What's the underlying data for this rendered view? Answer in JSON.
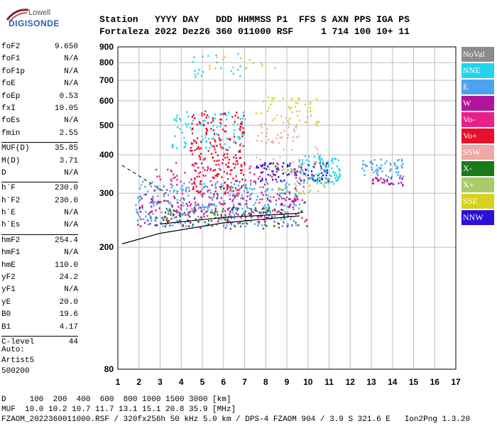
{
  "logo": {
    "top": "Lowell",
    "main": "DIGISONDE"
  },
  "header": {
    "line1": "Station   YYYY DAY   DDD HHMMSS P1  FFS S AXN PPS IGA PS",
    "line2": "Fortaleza 2022 Dez26 360 011000 RSF     1 714 100 10+ 11"
  },
  "params": {
    "group1": [
      {
        "name": "foF2",
        "value": "9.650"
      },
      {
        "name": "foF1",
        "value": "N/A"
      },
      {
        "name": "foF1p",
        "value": "N/A"
      },
      {
        "name": "foE",
        "value": "N/A"
      },
      {
        "name": "foEp",
        "value": "0.53"
      },
      {
        "name": "fxI",
        "value": "10.05"
      },
      {
        "name": "foEs",
        "value": "N/A"
      },
      {
        "name": "fmin",
        "value": "2.55"
      }
    ],
    "group2": [
      {
        "name": "MUF(D)",
        "value": "35.85"
      },
      {
        "name": "M(D)",
        "value": "3.71"
      },
      {
        "name": "D",
        "value": "N/A"
      }
    ],
    "group3": [
      {
        "name": "h`F",
        "value": "230.0"
      },
      {
        "name": "h`F2",
        "value": "230.0"
      },
      {
        "name": "h`E",
        "value": "N/A"
      },
      {
        "name": "h`Es",
        "value": "N/A"
      }
    ],
    "group4": [
      {
        "name": "hmF2",
        "value": "254.4"
      },
      {
        "name": "hmF1",
        "value": "N/A"
      },
      {
        "name": "hmE",
        "value": "110.0"
      },
      {
        "name": "yF2",
        "value": "24.2"
      },
      {
        "name": "yF1",
        "value": "N/A"
      },
      {
        "name": "yE",
        "value": "20.0"
      },
      {
        "name": "B0",
        "value": "19.6"
      },
      {
        "name": "B1",
        "value": "4.17"
      }
    ],
    "group5": [
      {
        "name": "C-level",
        "value": "44"
      }
    ]
  },
  "auto": {
    "line1": "Auto:",
    "line2": "Artist5",
    "line3": "500200"
  },
  "legend": [
    {
      "label": "NoVal",
      "color": "#8c8c8c"
    },
    {
      "label": "NNE",
      "color": "#22d3ee"
    },
    {
      "label": "E",
      "color": "#4aa3f0"
    },
    {
      "label": "W",
      "color": "#b0159c"
    },
    {
      "label": "Vo-",
      "color": "#e8208a"
    },
    {
      "label": "Vo+",
      "color": "#e8102a"
    },
    {
      "label": "SSW",
      "color": "#f0a8a8"
    },
    {
      "label": "X-",
      "color": "#1a7a1a"
    },
    {
      "label": "X+",
      "color": "#a8cc6a"
    },
    {
      "label": "SSE",
      "color": "#d8d020"
    },
    {
      "label": "NNW",
      "color": "#2a10d8"
    }
  ],
  "footer": {
    "line1": "D     100  200  400  600  800 1000 1500 3000 [km]",
    "line2": "MUF  10.0 10.2 10.7 11.7 13.1 15.1 20.8 35.9 [MHz]",
    "line3": "FZAOM_2022360011000.RSF / 320fx256h 50 kHz 5.0 km / DPS-4 FZAOM 904 / 3.9 S 321.6 E   Ion2Png 1.3.20"
  },
  "chart_data": {
    "type": "scatter",
    "title": "",
    "xlabel": "",
    "ylabel": "",
    "xlim": [
      1,
      17
    ],
    "ylim": [
      80,
      900
    ],
    "y_scale": "log",
    "grid": true,
    "x_ticks": [
      1,
      2,
      3,
      4,
      5,
      6,
      7,
      8,
      9,
      10,
      11,
      12,
      13,
      14,
      15,
      16,
      17
    ],
    "y_ticks": [
      80,
      200,
      300,
      400,
      500,
      600,
      700,
      800,
      900
    ],
    "clusters": [
      {
        "series": "E",
        "x": [
          1.8,
          9.6
        ],
        "y": [
          235,
          330
        ],
        "density": 380
      },
      {
        "series": "NNE",
        "x": [
          3.5,
          7.0
        ],
        "y": [
          420,
          560
        ],
        "density": 90
      },
      {
        "series": "Vo+",
        "x": [
          4.4,
          7.0
        ],
        "y": [
          300,
          560
        ],
        "density": 220
      },
      {
        "series": "Vo-",
        "x": [
          2.5,
          9.8
        ],
        "y": [
          250,
          380
        ],
        "density": 180
      },
      {
        "series": "W",
        "x": [
          1.9,
          10.0
        ],
        "y": [
          230,
          300
        ],
        "density": 140
      },
      {
        "series": "X-",
        "x": [
          2.8,
          9.8
        ],
        "y": [
          235,
          270
        ],
        "density": 80
      },
      {
        "series": "NNW",
        "x": [
          7.5,
          11.0
        ],
        "y": [
          330,
          380
        ],
        "density": 90
      },
      {
        "series": "NNE",
        "x": [
          9.5,
          11.5
        ],
        "y": [
          320,
          400
        ],
        "density": 90
      },
      {
        "series": "E",
        "x": [
          12.5,
          14.5
        ],
        "y": [
          340,
          390
        ],
        "density": 60
      },
      {
        "series": "W",
        "x": [
          13.0,
          14.5
        ],
        "y": [
          320,
          340
        ],
        "density": 30
      },
      {
        "series": "SSE",
        "x": [
          7.5,
          10.5
        ],
        "y": [
          500,
          620
        ],
        "density": 40
      },
      {
        "series": "SSW",
        "x": [
          7.5,
          10.5
        ],
        "y": [
          380,
          560
        ],
        "density": 60
      },
      {
        "series": "X+",
        "x": [
          8.0,
          11.0
        ],
        "y": [
          300,
          380
        ],
        "density": 60
      },
      {
        "series": "NNE",
        "x": [
          4.5,
          7.0
        ],
        "y": [
          720,
          860
        ],
        "density": 20
      },
      {
        "series": "SSE",
        "x": [
          5.0,
          8.5
        ],
        "y": [
          760,
          840
        ],
        "density": 15
      }
    ],
    "fit_curve": {
      "dashed": {
        "x": [
          1.2,
          3.3
        ],
        "y": [
          370,
          300
        ]
      },
      "solid_lower": {
        "x": [
          1.2,
          3.0,
          6.0,
          9.6
        ],
        "y": [
          205,
          222,
          240,
          253
        ]
      },
      "solid_upper": {
        "x": [
          3.0,
          6.0,
          9.6
        ],
        "y": [
          238,
          250,
          258
        ]
      }
    }
  }
}
